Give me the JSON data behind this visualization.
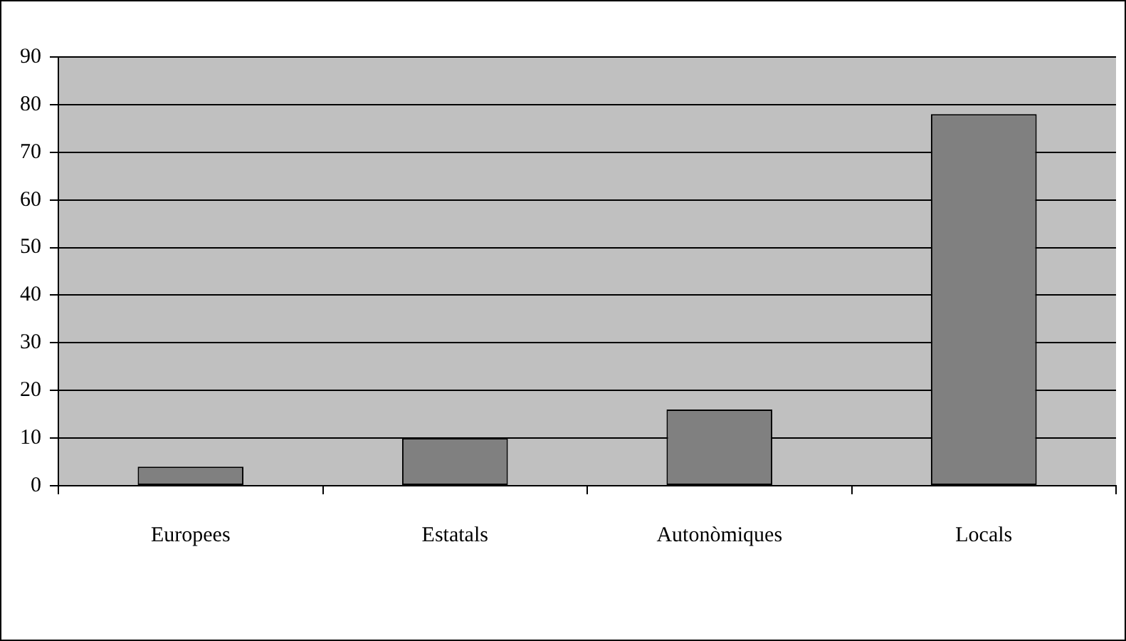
{
  "chart_data": {
    "type": "bar",
    "categories": [
      "Europees",
      "Estatals",
      "Autonòmiques",
      "Locals"
    ],
    "values": [
      4,
      10,
      16,
      78
    ],
    "color": "#808080",
    "ylim": [
      0,
      90
    ],
    "yticks": [
      0,
      10,
      20,
      30,
      40,
      50,
      60,
      70,
      80,
      90
    ],
    "grid": "y"
  }
}
